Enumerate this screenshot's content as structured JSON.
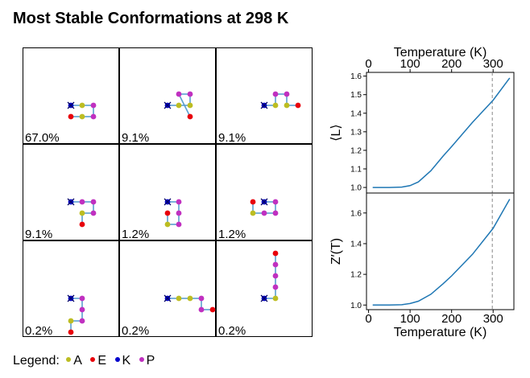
{
  "title": "Most Stable Conformations at 298 K",
  "legend": {
    "label": "Legend:",
    "items": [
      {
        "symbol": "A",
        "color": "#bcbd22"
      },
      {
        "symbol": "E",
        "color": "#e8000b"
      },
      {
        "symbol": "K",
        "color": "#0000cc"
      },
      {
        "symbol": "P",
        "color": "#c030c0"
      }
    ]
  },
  "colors": {
    "A": "#bcbd22",
    "E": "#e8000b",
    "K": "#0000cc",
    "P": "#c030c0",
    "bond": "#5aa0d0",
    "curve": "#1f77b4"
  },
  "chart_data": [
    {
      "type": "grid",
      "panels": [
        {
          "percent": "67.0%",
          "path": [
            [
              0,
              0
            ],
            [
              1,
              0
            ],
            [
              2,
              0
            ],
            [
              2,
              -1
            ],
            [
              1,
              -1
            ],
            [
              0,
              -1
            ]
          ],
          "types": [
            "K",
            "A",
            "P",
            "P",
            "A",
            "E"
          ]
        },
        {
          "percent": "9.1%",
          "path": [
            [
              0,
              0
            ],
            [
              1,
              0
            ],
            [
              2,
              0
            ],
            [
              2,
              1
            ],
            [
              1,
              1
            ],
            [
              2,
              -1
            ]
          ],
          "types": [
            "K",
            "A",
            "A",
            "P",
            "P",
            "E"
          ]
        },
        {
          "percent": "9.1%",
          "path": [
            [
              0,
              0
            ],
            [
              1,
              0
            ],
            [
              1,
              1
            ],
            [
              2,
              1
            ],
            [
              2,
              0
            ],
            [
              3,
              0
            ]
          ],
          "types": [
            "K",
            "A",
            "P",
            "P",
            "A",
            "E"
          ]
        },
        {
          "percent": "9.1%",
          "path": [
            [
              0,
              0
            ],
            [
              1,
              0
            ],
            [
              2,
              0
            ],
            [
              2,
              -1
            ],
            [
              1,
              -1
            ],
            [
              1,
              -2
            ]
          ],
          "types": [
            "K",
            "P",
            "P",
            "P",
            "A",
            "E"
          ]
        },
        {
          "percent": "1.2%",
          "path": [
            [
              0,
              0
            ],
            [
              1,
              0
            ],
            [
              1,
              -1
            ],
            [
              1,
              -2
            ],
            [
              0,
              -2
            ],
            [
              0,
              -1
            ]
          ],
          "types": [
            "K",
            "P",
            "P",
            "P",
            "A",
            "E"
          ]
        },
        {
          "percent": "1.2%",
          "path": [
            [
              0,
              0
            ],
            [
              1,
              0
            ],
            [
              1,
              -1
            ],
            [
              0,
              -1
            ],
            [
              -1,
              -1
            ],
            [
              -1,
              0
            ]
          ],
          "types": [
            "K",
            "P",
            "P",
            "P",
            "A",
            "E"
          ]
        },
        {
          "percent": "0.2%",
          "path": [
            [
              0,
              0
            ],
            [
              1,
              0
            ],
            [
              1,
              -1
            ],
            [
              1,
              -2
            ],
            [
              0,
              -2
            ],
            [
              0,
              -3
            ]
          ],
          "types": [
            "K",
            "P",
            "P",
            "P",
            "A",
            "E"
          ]
        },
        {
          "percent": "0.2%",
          "path": [
            [
              0,
              0
            ],
            [
              1,
              0
            ],
            [
              2,
              0
            ],
            [
              3,
              0
            ],
            [
              3,
              -1
            ],
            [
              4,
              -1
            ]
          ],
          "types": [
            "K",
            "A",
            "A",
            "P",
            "P",
            "E"
          ]
        },
        {
          "percent": "0.2%",
          "path": [
            [
              0,
              0
            ],
            [
              1,
              0
            ],
            [
              1,
              1
            ],
            [
              1,
              2
            ],
            [
              1,
              3
            ],
            [
              1,
              4
            ]
          ],
          "types": [
            "K",
            "A",
            "P",
            "P",
            "P",
            "E"
          ]
        }
      ]
    },
    {
      "type": "line",
      "xlabel": "Temperature (K)",
      "ylabel": "⟨L⟩",
      "xaxis_position": "top",
      "xlim": [
        -5,
        350
      ],
      "ylim": [
        0.97,
        1.62
      ],
      "xticks": [
        0,
        100,
        200,
        300
      ],
      "yticks": [
        1.0,
        1.1,
        1.2,
        1.3,
        1.4,
        1.5,
        1.6
      ],
      "reference_line": {
        "x": 298,
        "style": "dashed"
      },
      "series": [
        {
          "x": [
            10,
            50,
            80,
            100,
            120,
            150,
            180,
            200,
            250,
            300,
            340
          ],
          "y": [
            1.0,
            1.0,
            1.002,
            1.01,
            1.03,
            1.09,
            1.17,
            1.22,
            1.35,
            1.47,
            1.59
          ]
        }
      ]
    },
    {
      "type": "line",
      "xlabel": "Temperature (K)",
      "ylabel": "Z′(T)",
      "xaxis_position": "bottom",
      "xlim": [
        -5,
        350
      ],
      "ylim": [
        0.97,
        1.73
      ],
      "xticks": [
        0,
        100,
        200,
        300
      ],
      "yticks": [
        1.0,
        1.2,
        1.4,
        1.6
      ],
      "reference_line": {
        "x": 298,
        "style": "dashed"
      },
      "series": [
        {
          "x": [
            10,
            50,
            80,
            100,
            120,
            150,
            180,
            200,
            250,
            300,
            340
          ],
          "y": [
            1.0,
            1.0,
            1.002,
            1.01,
            1.025,
            1.07,
            1.14,
            1.19,
            1.33,
            1.5,
            1.69
          ]
        }
      ]
    }
  ]
}
